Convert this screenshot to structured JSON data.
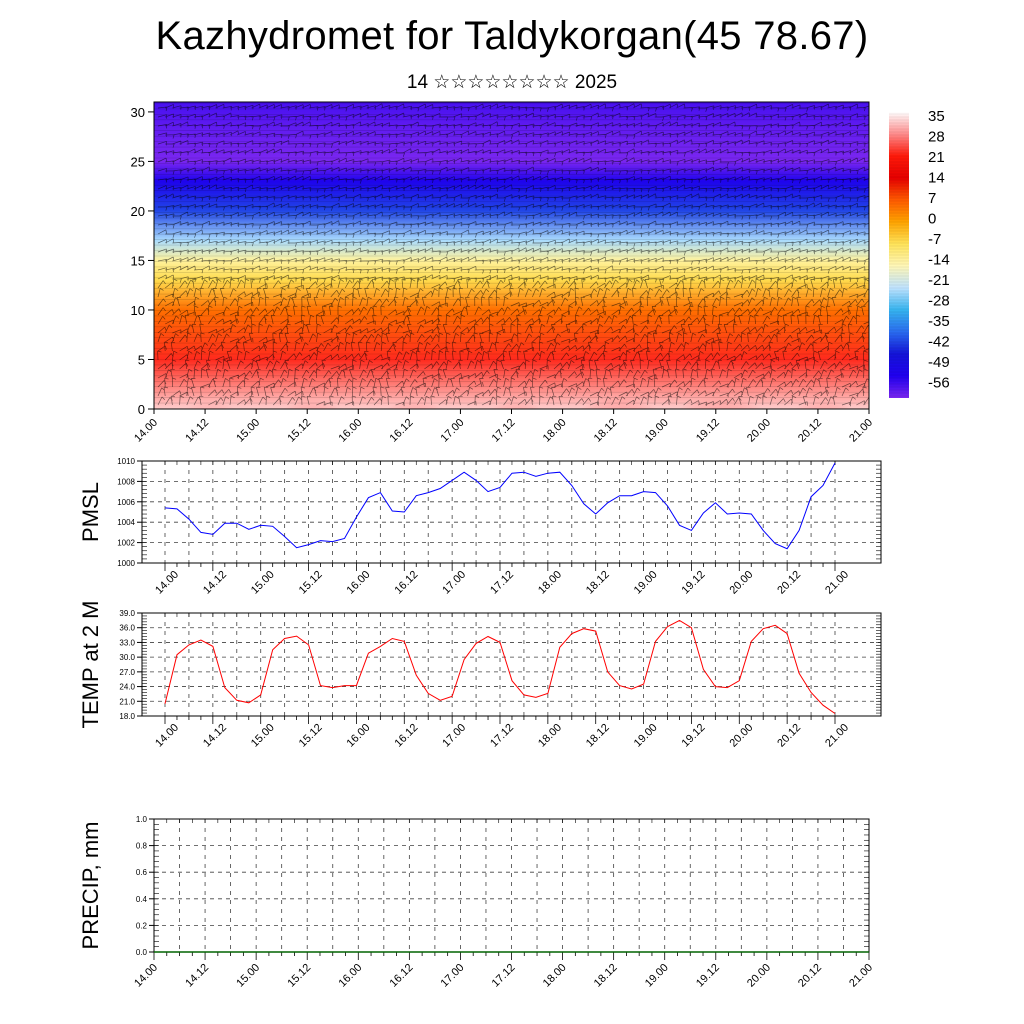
{
  "title": "Kazhydromet for Taldykorgan(45 78.67)",
  "subtitle": "14 ☆☆☆☆☆☆☆☆ 2025",
  "time_ticks": [
    "14.00",
    "14.12",
    "15.00",
    "15.12",
    "16.00",
    "16.12",
    "17.00",
    "17.12",
    "18.00",
    "18.12",
    "19.00",
    "19.12",
    "20.00",
    "20.12",
    "21.00"
  ],
  "chart_data": [
    {
      "type": "heatmap",
      "xticks": [
        "14.00",
        "14.12",
        "15.00",
        "15.12",
        "16.00",
        "16.12",
        "17.00",
        "17.12",
        "18.00",
        "18.12",
        "19.00",
        "19.12",
        "20.00",
        "20.12",
        "21.00"
      ],
      "yticks": [
        "0",
        "5",
        "10",
        "15",
        "20",
        "25",
        "30"
      ],
      "ylim": [
        0,
        31
      ],
      "colorbar": {
        "labels": [
          "35",
          "28",
          "21",
          "14",
          "7",
          "0",
          "-7",
          "-14",
          "-21",
          "-28",
          "-35",
          "-42",
          "-49",
          "-56"
        ],
        "colors": [
          "#ffffff",
          "#ff8c8c",
          "#ff1a0a",
          "#e60000",
          "#ff5a00",
          "#ffa400",
          "#ffe45a",
          "#fff7b8",
          "#bfe3ff",
          "#36b4f0",
          "#2a6cf0",
          "#1414d8",
          "#2000f0",
          "#7a26f0"
        ]
      },
      "vertical_profile": [
        {
          "h": 0,
          "t": 32
        },
        {
          "h": 5,
          "t": 22
        },
        {
          "h": 10,
          "t": 5
        },
        {
          "h": 13,
          "t": -6
        },
        {
          "h": 15,
          "t": -12
        },
        {
          "h": 17,
          "t": -22
        },
        {
          "h": 20,
          "t": -38
        },
        {
          "h": 23,
          "t": -48
        },
        {
          "h": 25,
          "t": -58
        },
        {
          "h": 27,
          "t": -55
        },
        {
          "h": 31,
          "t": -52
        }
      ],
      "wind_barbs": true
    },
    {
      "type": "line",
      "ylabel": "PMSL",
      "ylim": [
        1000,
        1010
      ],
      "yticks": [
        "1000",
        "1002",
        "1004",
        "1006",
        "1008",
        "1010"
      ],
      "xticks": [
        "14.00",
        "14.12",
        "15.00",
        "15.12",
        "16.00",
        "16.12",
        "17.00",
        "17.12",
        "18.00",
        "18.12",
        "19.00",
        "19.12",
        "20.00",
        "20.12",
        "21.00"
      ],
      "color": "#0000ff",
      "x": [
        0,
        3,
        6,
        9,
        12,
        15,
        18,
        21,
        24,
        27,
        30,
        33,
        36,
        39,
        42,
        45,
        48,
        51,
        54,
        57,
        60,
        63,
        66,
        69,
        72,
        75,
        78,
        81,
        84,
        87,
        90,
        93,
        96,
        99,
        102,
        105,
        108,
        111,
        114,
        117,
        120,
        123,
        126,
        129,
        132,
        135,
        138,
        141,
        144,
        147,
        150,
        153,
        156,
        159,
        162,
        165,
        168
      ],
      "values": [
        1005.4,
        1005.3,
        1004.3,
        1003.0,
        1002.8,
        1003.9,
        1003.9,
        1003.3,
        1003.7,
        1003.6,
        1002.6,
        1001.5,
        1001.8,
        1002.2,
        1002.1,
        1002.4,
        1004.5,
        1006.4,
        1006.9,
        1005.1,
        1005.0,
        1006.6,
        1006.9,
        1007.3,
        1008.1,
        1008.9,
        1008.1,
        1007.0,
        1007.4,
        1008.8,
        1008.9,
        1008.5,
        1008.8,
        1008.9,
        1007.6,
        1005.8,
        1004.8,
        1005.9,
        1006.6,
        1006.6,
        1007.0,
        1006.9,
        1005.6,
        1003.7,
        1003.2,
        1004.9,
        1005.9,
        1004.8,
        1004.9,
        1004.8,
        1003.2,
        1001.9,
        1001.4,
        1003.2,
        1006.5,
        1007.6,
        1009.8
      ]
    },
    {
      "type": "line",
      "ylabel": "TEMP at 2 M",
      "ylim": [
        18,
        39
      ],
      "yticks": [
        "18.0",
        "21.0",
        "24.0",
        "27.0",
        "30.0",
        "33.0",
        "36.0",
        "39.0"
      ],
      "xticks": [
        "14.00",
        "14.12",
        "15.00",
        "15.12",
        "16.00",
        "16.12",
        "17.00",
        "17.12",
        "18.00",
        "18.12",
        "19.00",
        "19.12",
        "20.00",
        "20.12",
        "21.00"
      ],
      "color": "#ff0000",
      "x": [
        0,
        3,
        6,
        9,
        12,
        15,
        18,
        21,
        24,
        27,
        30,
        33,
        36,
        39,
        42,
        45,
        48,
        51,
        54,
        57,
        60,
        63,
        66,
        69,
        72,
        75,
        78,
        81,
        84,
        87,
        90,
        93,
        96,
        99,
        102,
        105,
        108,
        111,
        114,
        117,
        120,
        123,
        126,
        129,
        132,
        135,
        138,
        141,
        144,
        147,
        150,
        153,
        156,
        159,
        162,
        165,
        168
      ],
      "values": [
        20.5,
        30.5,
        32.5,
        33.5,
        32.2,
        23.8,
        21.2,
        20.7,
        22.3,
        31.5,
        33.8,
        34.3,
        32.5,
        24.2,
        23.8,
        24.2,
        24.2,
        30.8,
        32.2,
        33.8,
        33.2,
        26.3,
        22.6,
        21.2,
        22.0,
        29.5,
        32.8,
        34.2,
        33.0,
        25.2,
        22.3,
        21.8,
        22.6,
        32.0,
        34.8,
        35.8,
        35.3,
        27.0,
        24.2,
        23.5,
        24.5,
        33.2,
        36.2,
        37.5,
        36.0,
        27.5,
        24.0,
        23.8,
        25.2,
        33.2,
        35.8,
        36.5,
        34.8,
        26.7,
        22.8,
        20.2,
        18.5
      ]
    },
    {
      "type": "line",
      "ylabel": "PRECIP, mm",
      "ylim": [
        0,
        1
      ],
      "yticks": [
        "0.0",
        "0.2",
        "0.4",
        "0.6",
        "0.8",
        "1.0"
      ],
      "xticks": [
        "14.00",
        "14.12",
        "15.00",
        "15.12",
        "16.00",
        "16.12",
        "17.00",
        "17.12",
        "18.00",
        "18.12",
        "19.00",
        "19.12",
        "20.00",
        "20.12",
        "21.00"
      ],
      "color": "#006400",
      "values": [
        0
      ]
    }
  ]
}
